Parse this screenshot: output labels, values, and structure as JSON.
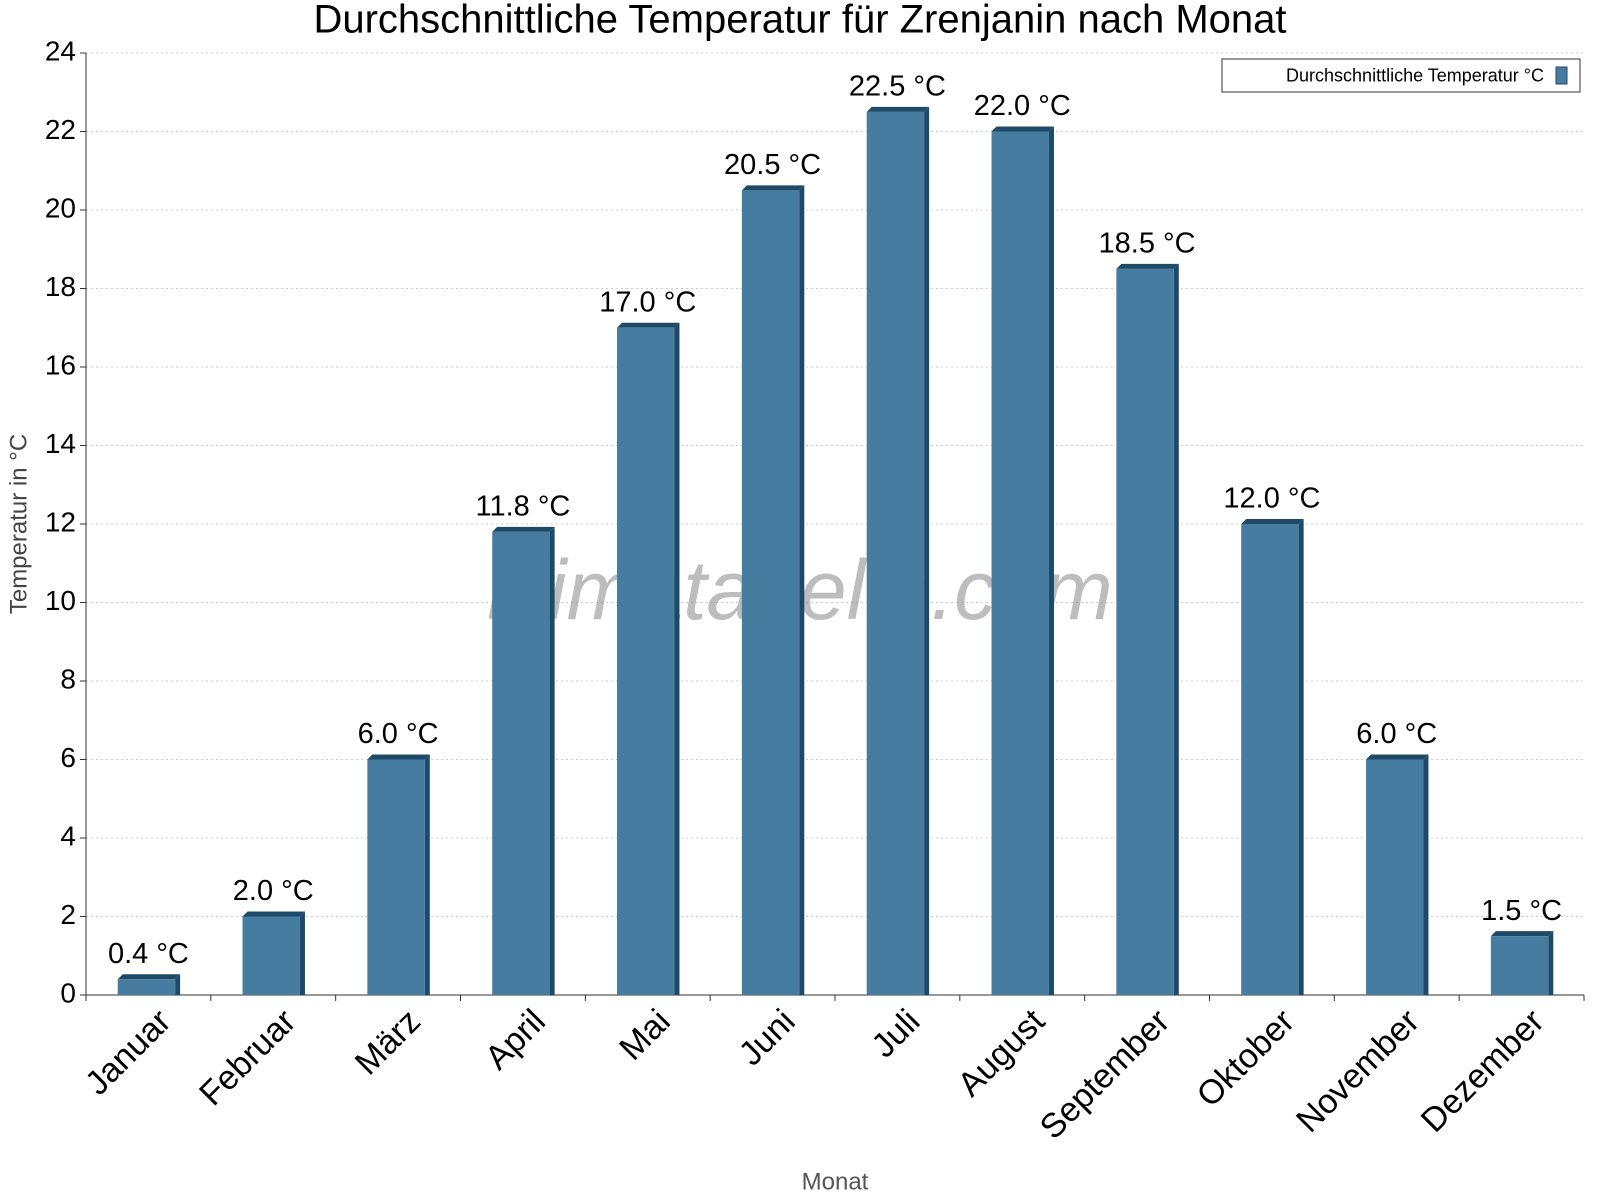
{
  "chart_data": {
    "type": "bar",
    "title": "Durchschnittliche Temperatur für Zrenjanin nach Monat",
    "x_label": "Monat",
    "y_label": "Temperatur in °C",
    "watermark": "klimatabelle.com",
    "categories": [
      "Januar",
      "Februar",
      "März",
      "April",
      "Mai",
      "Juni",
      "Juli",
      "August",
      "September",
      "Oktober",
      "November",
      "Dezember"
    ],
    "series": [
      {
        "name": "Durchschnittliche Temperatur °C",
        "color": "#467c9f",
        "values": [
          0.4,
          2.0,
          6.0,
          11.8,
          17.0,
          20.5,
          22.5,
          22.0,
          18.5,
          12.0,
          6.0,
          1.5
        ],
        "value_labels": [
          "0.4 °C",
          "2.0 °C",
          "6.0 °C",
          "11.8 °C",
          "17.0 °C",
          "20.5 °C",
          "22.5 °C",
          "22.0 °C",
          "18.5 °C",
          "12.0 °C",
          "6.0 °C",
          "1.5 °C"
        ]
      }
    ],
    "ylim": [
      0,
      24
    ],
    "yticks": [
      0,
      2,
      4,
      6,
      8,
      10,
      12,
      14,
      16,
      18,
      20,
      22,
      24
    ],
    "grid": true,
    "legend": "top-right"
  }
}
